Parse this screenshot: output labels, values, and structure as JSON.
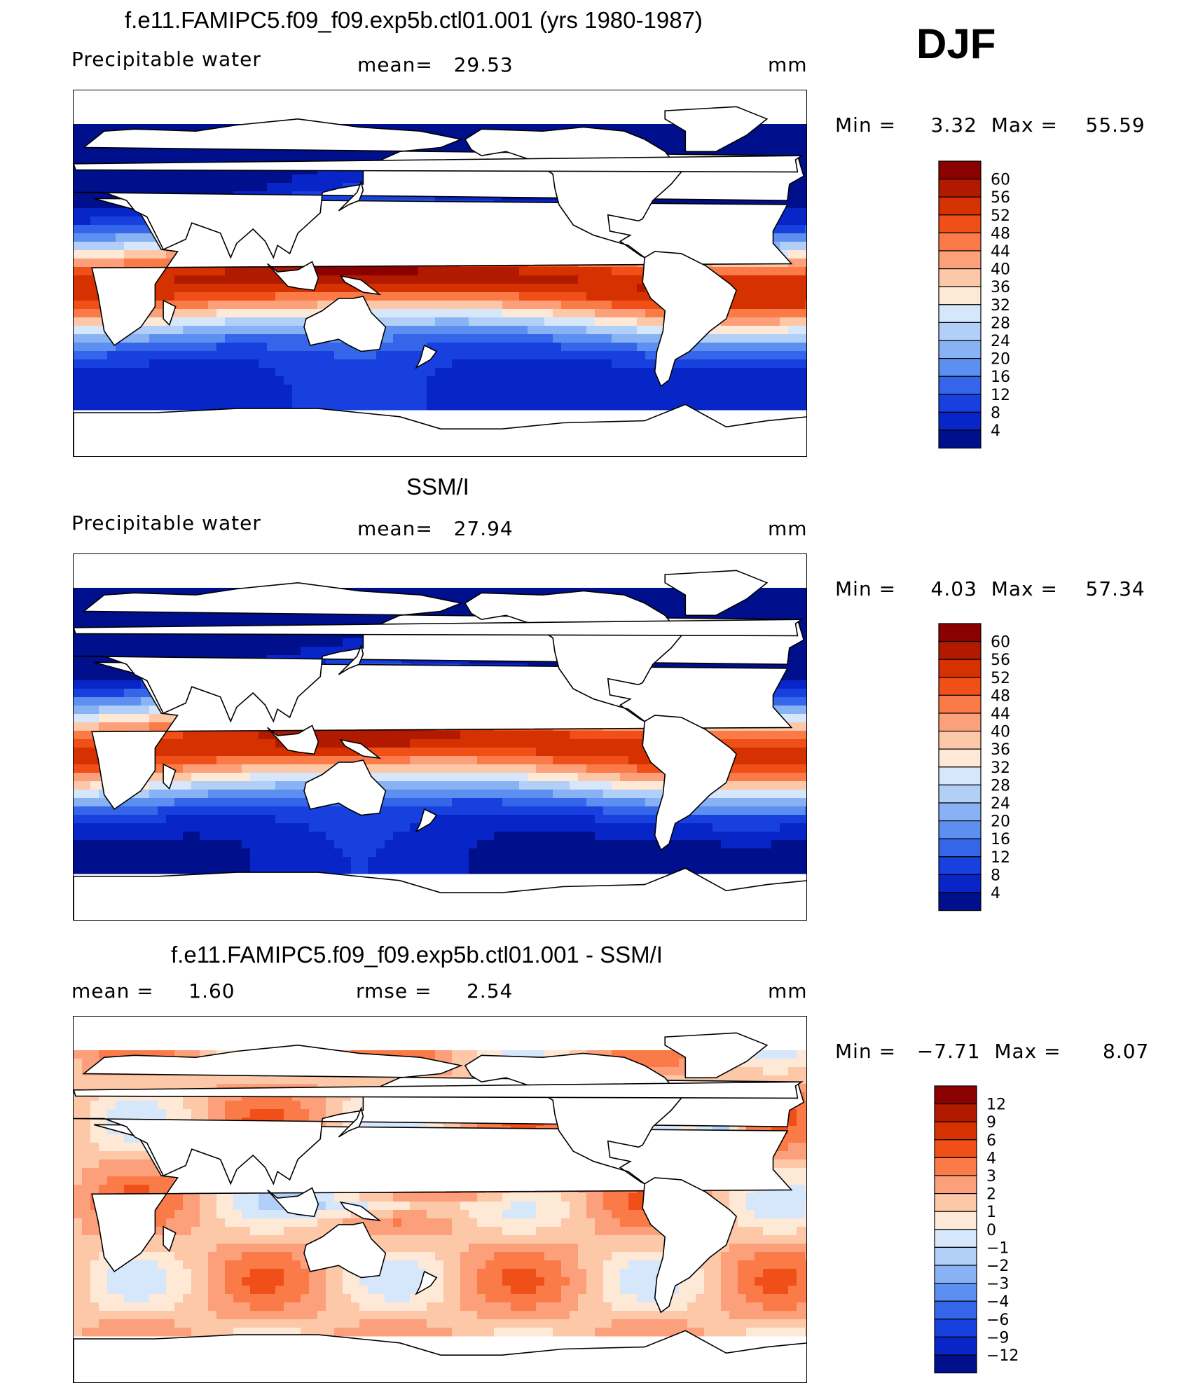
{
  "season": "DJF",
  "panels": [
    {
      "id": "model",
      "title": "f.e11.FAMIPC5.f09_f09.exp5b.ctl01.001 (yrs 1980-1987)",
      "left_label": "Precipitable water",
      "stat1": "mean=   29.53",
      "stat2": "",
      "units": "mm",
      "minmax": "Min =     3.32  Max =    55.59",
      "colorbar": {
        "labels": [
          "60",
          "56",
          "52",
          "48",
          "44",
          "40",
          "36",
          "32",
          "28",
          "24",
          "20",
          "16",
          "12",
          "8",
          "4"
        ],
        "colors": [
          "#8b0000",
          "#b21a00",
          "#d63100",
          "#f05018",
          "#fa7b48",
          "#fca07c",
          "#fdc8a8",
          "#fee8d6",
          "#d6e6fb",
          "#b2cff8",
          "#88b2f4",
          "#5c8ff0",
          "#3566ea",
          "#1740df",
          "#0826c8",
          "#000f8c"
        ]
      },
      "map_field": "pw"
    },
    {
      "id": "obs",
      "title": "SSM/I",
      "left_label": "Precipitable water",
      "stat1": "mean=   27.94",
      "stat2": "",
      "units": "mm",
      "minmax": "Min =     4.03  Max =    57.34",
      "colorbar": {
        "labels": [
          "60",
          "56",
          "52",
          "48",
          "44",
          "40",
          "36",
          "32",
          "28",
          "24",
          "20",
          "16",
          "12",
          "8",
          "4"
        ],
        "colors": [
          "#8b0000",
          "#b21a00",
          "#d63100",
          "#f05018",
          "#fa7b48",
          "#fca07c",
          "#fdc8a8",
          "#fee8d6",
          "#d6e6fb",
          "#b2cff8",
          "#88b2f4",
          "#5c8ff0",
          "#3566ea",
          "#1740df",
          "#0826c8",
          "#000f8c"
        ]
      },
      "map_field": "pw"
    },
    {
      "id": "diff",
      "title": "f.e11.FAMIPC5.f09_f09.exp5b.ctl01.001 - SSM/I",
      "left_label": "mean =     1.60",
      "stat1": "rmse =     2.54",
      "stat2": "",
      "units": "mm",
      "minmax": "Min =   −7.71  Max =      8.07",
      "colorbar": {
        "labels": [
          "12",
          "9",
          "6",
          "4",
          "3",
          "2",
          "1",
          "0",
          "−1",
          "−2",
          "−3",
          "−4",
          "−6",
          "−9",
          "−12"
        ],
        "colors": [
          "#8b0000",
          "#b21a00",
          "#d63100",
          "#f05018",
          "#fa7b48",
          "#fca07c",
          "#fdc8a8",
          "#fee8d6",
          "#d6e6fb",
          "#b2cff8",
          "#88b2f4",
          "#5c8ff0",
          "#3566ea",
          "#1740df",
          "#0826c8",
          "#000f8c"
        ]
      },
      "map_field": "diff"
    }
  ]
}
